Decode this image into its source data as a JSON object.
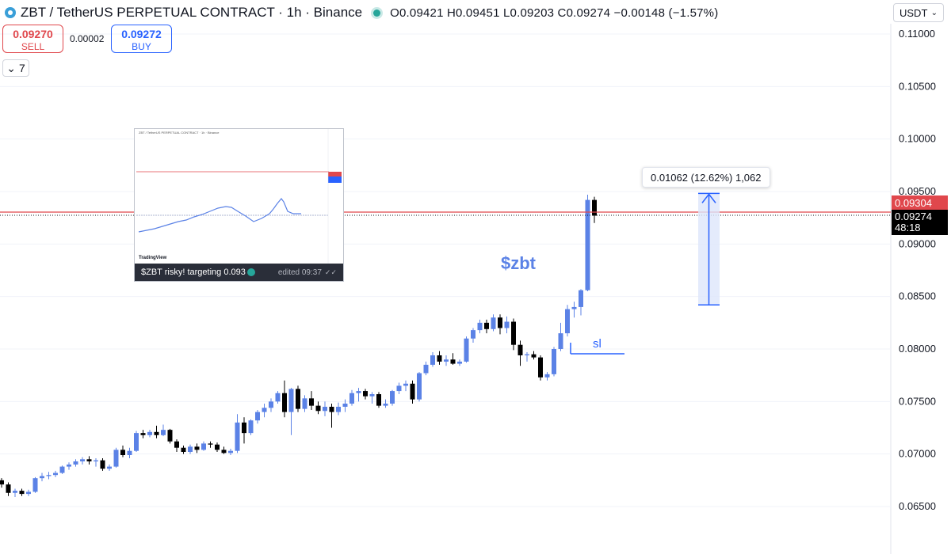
{
  "header": {
    "title": "ZBT / TetherUS PERPETUAL CONTRACT · 1h · Binance",
    "ohlc": "O0.09421 H0.09451 L0.09203 C0.09274 −0.00148 (−1.57%)"
  },
  "trade": {
    "sell_price": "0.09270",
    "sell_label": "SELL",
    "spread": "0.00002",
    "buy_price": "0.09272",
    "buy_label": "BUY"
  },
  "indicators_toggle": "7",
  "currency": "USDT",
  "price_tags": {
    "red": "0.09304",
    "current": "0.09274",
    "countdown": "48:18"
  },
  "measure_label": "0.01062 (12.62%) 1,062",
  "annotations": {
    "ticker_text": "$zbt",
    "sl_text": "sl"
  },
  "thumbnail": {
    "title": "ZBT / TetherUS PERPETUAL CONTRACT · 1h · Binance",
    "watermark": "TradingView",
    "caption": "$ZBT risky! targeting 0.093",
    "edited": "edited 09:37"
  },
  "colors": {
    "up": "#5b82e6",
    "down": "#000000",
    "red_line": "#e0474c",
    "accent": "#2962ff",
    "measure_fill": "#dde6fb"
  },
  "chart_data": {
    "type": "candlestick",
    "title": "ZBT / TetherUS PERPETUAL CONTRACT · 1h · Binance",
    "ylim": [
      0.0625,
      0.1125
    ],
    "y_ticks": [
      "0.11000",
      "0.10500",
      "0.10000",
      "0.09500",
      "0.09000",
      "0.08500",
      "0.08000",
      "0.07500",
      "0.07000",
      "0.06500"
    ],
    "y_tick_values": [
      0.11,
      0.105,
      0.1,
      0.095,
      0.09,
      0.085,
      0.08,
      0.075,
      0.07,
      0.065
    ],
    "horizontal_line": 0.09304,
    "current_price": 0.09274,
    "measure": {
      "from": 0.0842,
      "to": 0.09482,
      "change": "0.01062 (12.62%) 1,062"
    },
    "stop_loss": 0.07955,
    "candles": [
      {
        "o": 0.0675,
        "h": 0.0677,
        "l": 0.0668,
        "c": 0.0671
      },
      {
        "o": 0.0671,
        "h": 0.0673,
        "l": 0.066,
        "c": 0.0663
      },
      {
        "o": 0.0663,
        "h": 0.0667,
        "l": 0.0659,
        "c": 0.0665
      },
      {
        "o": 0.0665,
        "h": 0.0667,
        "l": 0.066,
        "c": 0.0662
      },
      {
        "o": 0.0662,
        "h": 0.0666,
        "l": 0.066,
        "c": 0.0664
      },
      {
        "o": 0.0664,
        "h": 0.0678,
        "l": 0.0663,
        "c": 0.0677
      },
      {
        "o": 0.0677,
        "h": 0.0682,
        "l": 0.0674,
        "c": 0.0679
      },
      {
        "o": 0.0679,
        "h": 0.0683,
        "l": 0.0676,
        "c": 0.068
      },
      {
        "o": 0.068,
        "h": 0.0684,
        "l": 0.0678,
        "c": 0.0682
      },
      {
        "o": 0.0682,
        "h": 0.0689,
        "l": 0.0681,
        "c": 0.0688
      },
      {
        "o": 0.0688,
        "h": 0.0692,
        "l": 0.0685,
        "c": 0.069
      },
      {
        "o": 0.069,
        "h": 0.0695,
        "l": 0.0688,
        "c": 0.0693
      },
      {
        "o": 0.0693,
        "h": 0.0697,
        "l": 0.069,
        "c": 0.0695
      },
      {
        "o": 0.0695,
        "h": 0.0698,
        "l": 0.069,
        "c": 0.0693
      },
      {
        "o": 0.0693,
        "h": 0.0696,
        "l": 0.0688,
        "c": 0.0694
      },
      {
        "o": 0.0694,
        "h": 0.0696,
        "l": 0.0684,
        "c": 0.0686
      },
      {
        "o": 0.0686,
        "h": 0.069,
        "l": 0.0684,
        "c": 0.0688
      },
      {
        "o": 0.0688,
        "h": 0.0706,
        "l": 0.0687,
        "c": 0.0704
      },
      {
        "o": 0.0704,
        "h": 0.0708,
        "l": 0.0697,
        "c": 0.0699
      },
      {
        "o": 0.0699,
        "h": 0.0706,
        "l": 0.0696,
        "c": 0.0703
      },
      {
        "o": 0.0703,
        "h": 0.0722,
        "l": 0.0702,
        "c": 0.072
      },
      {
        "o": 0.072,
        "h": 0.0723,
        "l": 0.0715,
        "c": 0.0718
      },
      {
        "o": 0.0718,
        "h": 0.0723,
        "l": 0.0716,
        "c": 0.0721
      },
      {
        "o": 0.0721,
        "h": 0.0727,
        "l": 0.0715,
        "c": 0.0718
      },
      {
        "o": 0.0718,
        "h": 0.0728,
        "l": 0.0717,
        "c": 0.0723
      },
      {
        "o": 0.0723,
        "h": 0.0724,
        "l": 0.071,
        "c": 0.0712
      },
      {
        "o": 0.0712,
        "h": 0.0714,
        "l": 0.0702,
        "c": 0.0706
      },
      {
        "o": 0.0706,
        "h": 0.0708,
        "l": 0.07,
        "c": 0.0702
      },
      {
        "o": 0.0702,
        "h": 0.0709,
        "l": 0.07,
        "c": 0.0707
      },
      {
        "o": 0.0707,
        "h": 0.071,
        "l": 0.0701,
        "c": 0.0704
      },
      {
        "o": 0.0704,
        "h": 0.0712,
        "l": 0.0703,
        "c": 0.071
      },
      {
        "o": 0.071,
        "h": 0.0712,
        "l": 0.0706,
        "c": 0.0709
      },
      {
        "o": 0.0709,
        "h": 0.0711,
        "l": 0.0702,
        "c": 0.0704
      },
      {
        "o": 0.0704,
        "h": 0.0707,
        "l": 0.07,
        "c": 0.0701
      },
      {
        "o": 0.0701,
        "h": 0.0705,
        "l": 0.0699,
        "c": 0.0703
      },
      {
        "o": 0.0703,
        "h": 0.0738,
        "l": 0.0701,
        "c": 0.073
      },
      {
        "o": 0.073,
        "h": 0.0735,
        "l": 0.071,
        "c": 0.072
      },
      {
        "o": 0.072,
        "h": 0.0733,
        "l": 0.0718,
        "c": 0.0732
      },
      {
        "o": 0.0732,
        "h": 0.0742,
        "l": 0.0729,
        "c": 0.074
      },
      {
        "o": 0.074,
        "h": 0.0748,
        "l": 0.0735,
        "c": 0.0744
      },
      {
        "o": 0.0744,
        "h": 0.0753,
        "l": 0.074,
        "c": 0.075
      },
      {
        "o": 0.075,
        "h": 0.076,
        "l": 0.0748,
        "c": 0.0758
      },
      {
        "o": 0.0758,
        "h": 0.077,
        "l": 0.0735,
        "c": 0.074
      },
      {
        "o": 0.074,
        "h": 0.0763,
        "l": 0.0718,
        "c": 0.0762
      },
      {
        "o": 0.0762,
        "h": 0.0765,
        "l": 0.074,
        "c": 0.0743
      },
      {
        "o": 0.0743,
        "h": 0.0756,
        "l": 0.074,
        "c": 0.0753
      },
      {
        "o": 0.0753,
        "h": 0.076,
        "l": 0.0742,
        "c": 0.0746
      },
      {
        "o": 0.0746,
        "h": 0.075,
        "l": 0.0738,
        "c": 0.0741
      },
      {
        "o": 0.0741,
        "h": 0.075,
        "l": 0.0736,
        "c": 0.0745
      },
      {
        "o": 0.0745,
        "h": 0.0748,
        "l": 0.0725,
        "c": 0.074
      },
      {
        "o": 0.074,
        "h": 0.0749,
        "l": 0.0737,
        "c": 0.0745
      },
      {
        "o": 0.0745,
        "h": 0.0752,
        "l": 0.074,
        "c": 0.0748
      },
      {
        "o": 0.0748,
        "h": 0.0761,
        "l": 0.0746,
        "c": 0.0758
      },
      {
        "o": 0.0758,
        "h": 0.0763,
        "l": 0.075,
        "c": 0.076
      },
      {
        "o": 0.076,
        "h": 0.0762,
        "l": 0.0752,
        "c": 0.0755
      },
      {
        "o": 0.0755,
        "h": 0.0759,
        "l": 0.0748,
        "c": 0.0757
      },
      {
        "o": 0.0757,
        "h": 0.0759,
        "l": 0.0744,
        "c": 0.0746
      },
      {
        "o": 0.0746,
        "h": 0.0752,
        "l": 0.0744,
        "c": 0.0748
      },
      {
        "o": 0.0748,
        "h": 0.0761,
        "l": 0.0746,
        "c": 0.076
      },
      {
        "o": 0.076,
        "h": 0.0768,
        "l": 0.0757,
        "c": 0.0765
      },
      {
        "o": 0.0765,
        "h": 0.077,
        "l": 0.076,
        "c": 0.0767
      },
      {
        "o": 0.0767,
        "h": 0.077,
        "l": 0.0748,
        "c": 0.0752
      },
      {
        "o": 0.0752,
        "h": 0.0778,
        "l": 0.075,
        "c": 0.0777
      },
      {
        "o": 0.0777,
        "h": 0.0788,
        "l": 0.0775,
        "c": 0.0785
      },
      {
        "o": 0.0785,
        "h": 0.0797,
        "l": 0.0783,
        "c": 0.0794
      },
      {
        "o": 0.0794,
        "h": 0.0798,
        "l": 0.0785,
        "c": 0.0788
      },
      {
        "o": 0.0788,
        "h": 0.0794,
        "l": 0.0784,
        "c": 0.079
      },
      {
        "o": 0.079,
        "h": 0.0796,
        "l": 0.0785,
        "c": 0.0786
      },
      {
        "o": 0.0786,
        "h": 0.079,
        "l": 0.0784,
        "c": 0.0788
      },
      {
        "o": 0.0788,
        "h": 0.0812,
        "l": 0.0787,
        "c": 0.081
      },
      {
        "o": 0.081,
        "h": 0.082,
        "l": 0.0806,
        "c": 0.0818
      },
      {
        "o": 0.0818,
        "h": 0.0828,
        "l": 0.0815,
        "c": 0.0825
      },
      {
        "o": 0.0825,
        "h": 0.0828,
        "l": 0.0815,
        "c": 0.0819
      },
      {
        "o": 0.0819,
        "h": 0.0833,
        "l": 0.0817,
        "c": 0.083
      },
      {
        "o": 0.083,
        "h": 0.0833,
        "l": 0.0814,
        "c": 0.082
      },
      {
        "o": 0.082,
        "h": 0.0831,
        "l": 0.0815,
        "c": 0.0826
      },
      {
        "o": 0.0826,
        "h": 0.0829,
        "l": 0.0799,
        "c": 0.0804
      },
      {
        "o": 0.0804,
        "h": 0.0808,
        "l": 0.0784,
        "c": 0.0794
      },
      {
        "o": 0.0794,
        "h": 0.0797,
        "l": 0.0788,
        "c": 0.0795
      },
      {
        "o": 0.0795,
        "h": 0.0798,
        "l": 0.079,
        "c": 0.0792
      },
      {
        "o": 0.0792,
        "h": 0.0794,
        "l": 0.077,
        "c": 0.0773
      },
      {
        "o": 0.0773,
        "h": 0.0778,
        "l": 0.077,
        "c": 0.0776
      },
      {
        "o": 0.0776,
        "h": 0.0802,
        "l": 0.0774,
        "c": 0.08
      },
      {
        "o": 0.08,
        "h": 0.0825,
        "l": 0.0798,
        "c": 0.0815
      },
      {
        "o": 0.0815,
        "h": 0.0842,
        "l": 0.0812,
        "c": 0.0838
      },
      {
        "o": 0.0838,
        "h": 0.0845,
        "l": 0.083,
        "c": 0.084
      },
      {
        "o": 0.084,
        "h": 0.0857,
        "l": 0.0832,
        "c": 0.0856
      },
      {
        "o": 0.0856,
        "h": 0.0947,
        "l": 0.0855,
        "c": 0.0942
      },
      {
        "o": 0.0942,
        "h": 0.0945,
        "l": 0.092,
        "c": 0.0927
      }
    ]
  }
}
